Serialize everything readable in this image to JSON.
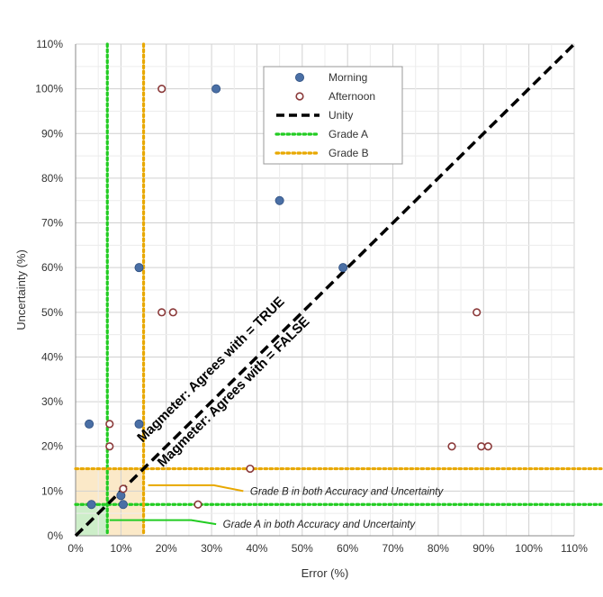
{
  "chart_data": {
    "type": "scatter",
    "xlabel": "Error (%)",
    "ylabel": "Uncertainty (%)",
    "xlim": [
      0,
      110
    ],
    "ylim": [
      0,
      110
    ],
    "grid": true,
    "x_tick_labels": [
      "0%",
      "10%",
      "20%",
      "30%",
      "40%",
      "50%",
      "60%",
      "70%",
      "80%",
      "90%",
      "100%",
      "110%"
    ],
    "y_tick_labels": [
      "0%",
      "10%",
      "20%",
      "30%",
      "40%",
      "50%",
      "60%",
      "70%",
      "80%",
      "90%",
      "100%",
      "110%"
    ],
    "x_ticks": [
      0,
      10,
      20,
      30,
      40,
      50,
      60,
      70,
      80,
      90,
      100,
      110
    ],
    "y_ticks": [
      0,
      10,
      20,
      30,
      40,
      50,
      60,
      70,
      80,
      90,
      100,
      110
    ],
    "legend_position": "top-center",
    "series": [
      {
        "name": "Morning",
        "marker": "filled-circle",
        "color": "#4a6fa5",
        "points": [
          {
            "x": 3,
            "y": 25
          },
          {
            "x": 3.5,
            "y": 7
          },
          {
            "x": 10,
            "y": 9
          },
          {
            "x": 10.5,
            "y": 7
          },
          {
            "x": 14,
            "y": 25
          },
          {
            "x": 14,
            "y": 60
          },
          {
            "x": 31,
            "y": 100
          },
          {
            "x": 45,
            "y": 75
          },
          {
            "x": 59,
            "y": 60
          }
        ]
      },
      {
        "name": "Afternoon",
        "marker": "open-circle",
        "color": "#8b3a3a",
        "points": [
          {
            "x": 7.5,
            "y": 25
          },
          {
            "x": 7.5,
            "y": 20
          },
          {
            "x": 10.5,
            "y": 10.5
          },
          {
            "x": 19,
            "y": 100
          },
          {
            "x": 19,
            "y": 50
          },
          {
            "x": 21.5,
            "y": 50
          },
          {
            "x": 27,
            "y": 7
          },
          {
            "x": 38.5,
            "y": 15
          },
          {
            "x": 83,
            "y": 20
          },
          {
            "x": 88.5,
            "y": 50
          },
          {
            "x": 89.5,
            "y": 20
          },
          {
            "x": 91,
            "y": 20
          }
        ]
      },
      {
        "name": "Unity",
        "style": "dashed",
        "color": "#000000",
        "points": [
          {
            "x": 0,
            "y": 0
          },
          {
            "x": 110,
            "y": 110
          }
        ]
      },
      {
        "name": "Grade A",
        "style": "dotted",
        "color": "#22cc22",
        "threshold": 7
      },
      {
        "name": "Grade B",
        "style": "dotted",
        "color": "#e8a800",
        "threshold": 15
      }
    ],
    "annotations": {
      "true_region": "Magmeter: Agrees with = TRUE",
      "false_region": "Magmeter: Agrees with = FALSE",
      "grade_b": "Grade B in both Accuracy and Uncertainty",
      "grade_a": "Grade A in both Accuracy and Uncertainty"
    }
  }
}
